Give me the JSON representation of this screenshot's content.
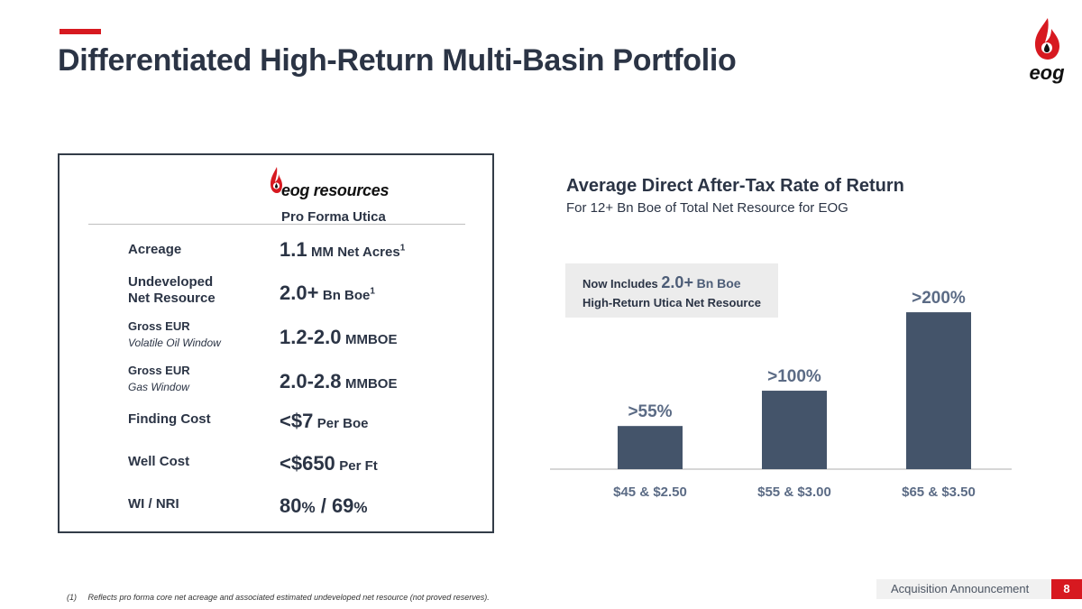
{
  "header": {
    "title": "Differentiated High-Return Multi-Basin Portfolio",
    "accent_color": "#d71920",
    "logo_text": "eog"
  },
  "left_panel": {
    "brand_name": "eog resources",
    "brand_subtitle": "Pro Forma Utica",
    "rows": [
      {
        "label": "Acreage",
        "sublabel": "",
        "value": "1.1",
        "unit": "MM Net Acres",
        "sup": "1"
      },
      {
        "label": "Undeveloped",
        "label2": "Net Resource",
        "sublabel": "",
        "value": "2.0+",
        "unit": "Bn Boe",
        "sup": "1"
      },
      {
        "label": "Gross EUR",
        "sublabel": "Volatile Oil Window",
        "value": "1.2-2.0",
        "unit": "MMBOE",
        "sup": ""
      },
      {
        "label": "Gross EUR",
        "sublabel": "Gas Window",
        "value": "2.0-2.8",
        "unit": "MMBOE",
        "sup": ""
      },
      {
        "label": "Finding Cost",
        "sublabel": "",
        "value": "<$7",
        "unit": "Per Boe",
        "sup": ""
      },
      {
        "label": "Well Cost",
        "sublabel": "",
        "value": "<$650",
        "unit": "Per Ft",
        "sup": ""
      },
      {
        "label": "WI / NRI",
        "sublabel": "",
        "value": "80",
        "value_pct1": "%",
        "value_mid": " / 69",
        "value_pct2": "%",
        "unit": "",
        "sup": ""
      }
    ]
  },
  "chart": {
    "title": "Average Direct After-Tax Rate of Return",
    "subtitle": "For 12+ Bn Boe of Total Net Resource for EOG",
    "callout": {
      "prefix": "Now Includes",
      "highlight": "2.0+",
      "highlight_unit": "Bn Boe",
      "line2": "High-Return Utica Net Resource"
    },
    "bar_color": "#44546a"
  },
  "chart_data": {
    "type": "bar",
    "categories": [
      "$45 & $2.50",
      "$55 & $3.00",
      "$65 & $3.50"
    ],
    "values": [
      55,
      100,
      200
    ],
    "data_labels": [
      ">55%",
      ">100%",
      ">200%"
    ],
    "title": "Average Direct After-Tax Rate of Return",
    "subtitle": "For 12+ Bn Boe of Total Net Resource for EOG",
    "xlabel": "",
    "ylabel": "",
    "ylim": [
      0,
      230
    ],
    "grid": false,
    "legend": "none"
  },
  "footer": {
    "section": "Acquisition Announcement",
    "page": "8",
    "footnote_num": "(1)",
    "footnote_text": "Reflects pro forma core net acreage and associated estimated undeveloped net resource (not proved reserves)."
  }
}
